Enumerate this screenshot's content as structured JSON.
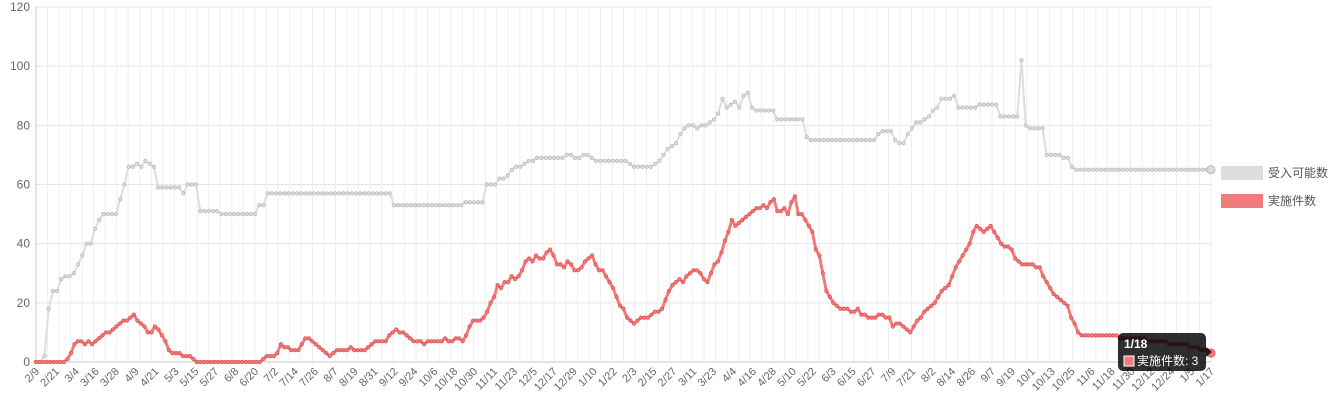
{
  "chart_data": {
    "type": "line",
    "ylim": [
      0,
      120
    ],
    "yticks": [
      0,
      20,
      40,
      60,
      80,
      100,
      120
    ],
    "grid": true,
    "legend_position": "right",
    "x_tick_labels": [
      "2/9",
      "2/21",
      "3/4",
      "3/16",
      "3/28",
      "4/9",
      "4/21",
      "5/3",
      "5/15",
      "5/27",
      "6/8",
      "6/20",
      "7/2",
      "7/14",
      "7/26",
      "8/7",
      "8/19",
      "8/31",
      "9/12",
      "9/24",
      "10/6",
      "10/18",
      "10/30",
      "11/11",
      "11/23",
      "12/5",
      "12/17",
      "12/29",
      "1/10",
      "1/22",
      "2/3",
      "2/15",
      "2/27",
      "3/11",
      "3/23",
      "4/4",
      "4/16",
      "4/28",
      "5/10",
      "5/22",
      "6/3",
      "6/15",
      "6/27",
      "7/9",
      "7/21",
      "8/2",
      "8/14",
      "8/26",
      "9/7",
      "9/19",
      "10/1",
      "10/13",
      "10/25",
      "11/6",
      "11/18",
      "11/30",
      "12/12",
      "12/24",
      "1/5",
      "1/17"
    ],
    "series": [
      {
        "name": "受入可能数",
        "color": "#dddddd",
        "point_color": "#bbbbbb",
        "values": [
          0,
          0,
          2,
          18,
          24,
          24,
          28,
          29,
          29,
          30,
          33,
          36,
          40,
          40,
          45,
          48,
          50,
          50,
          50,
          50,
          55,
          60,
          66,
          66,
          67,
          66,
          68,
          67,
          66,
          59,
          59,
          59,
          59,
          59,
          59,
          57,
          60,
          60,
          60,
          51,
          51,
          51,
          51,
          51,
          50,
          50,
          50,
          50,
          50,
          50,
          50,
          50,
          50,
          53,
          53,
          57,
          57,
          57,
          57,
          57,
          57,
          57,
          57,
          57,
          57,
          57,
          57,
          57,
          57,
          57,
          57,
          57,
          57,
          57,
          57,
          57,
          57,
          57,
          57,
          57,
          57,
          57,
          57,
          57,
          57,
          53,
          53,
          53,
          53,
          53,
          53,
          53,
          53,
          53,
          53,
          53,
          53,
          53,
          53,
          53,
          53,
          53,
          54,
          54,
          54,
          54,
          54,
          60,
          60,
          60,
          62,
          62,
          63,
          65,
          66,
          66,
          67,
          68,
          68,
          69,
          69,
          69,
          69,
          69,
          69,
          69,
          70,
          70,
          69,
          69,
          70,
          70,
          69,
          68,
          68,
          68,
          68,
          68,
          68,
          68,
          68,
          67,
          66,
          66,
          66,
          66,
          66,
          67,
          68,
          70,
          72,
          73,
          74,
          77,
          79,
          80,
          80,
          79,
          80,
          80,
          81,
          82,
          84,
          89,
          86,
          87,
          88,
          86,
          90,
          91,
          86,
          85,
          85,
          85,
          85,
          85,
          82,
          82,
          82,
          82,
          82,
          82,
          82,
          76,
          75,
          75,
          75,
          75,
          75,
          75,
          75,
          75,
          75,
          75,
          75,
          75,
          75,
          75,
          75,
          75,
          77,
          78,
          78,
          78,
          75,
          74,
          74,
          77,
          79,
          81,
          81,
          82,
          83,
          85,
          86,
          89,
          89,
          89,
          90,
          86,
          86,
          86,
          86,
          86,
          87,
          87,
          87,
          87,
          87,
          83,
          83,
          83,
          83,
          83,
          102,
          80,
          79,
          79,
          79,
          79,
          70,
          70,
          70,
          70,
          69,
          69,
          66,
          65,
          65,
          65,
          65,
          65,
          65,
          65,
          65,
          65,
          65,
          65,
          65,
          65,
          65,
          65,
          65,
          65,
          65,
          65,
          65,
          65,
          65,
          65,
          65,
          65,
          65,
          65,
          65,
          65,
          65,
          65,
          65,
          65
        ]
      },
      {
        "name": "実施件数",
        "color": "#f27b7b",
        "point_color": "#e05555",
        "values": [
          0,
          0,
          0,
          0,
          0,
          0,
          0,
          0,
          0,
          1,
          3,
          6,
          7,
          7,
          6,
          7,
          6,
          7,
          8,
          9,
          10,
          10,
          11,
          12,
          13,
          14,
          14,
          15,
          16,
          14,
          13,
          12,
          10,
          10,
          12,
          11,
          9,
          7,
          4,
          3,
          3,
          3,
          2,
          2,
          2,
          1,
          0,
          0,
          0,
          0,
          0,
          0,
          0,
          0,
          0,
          0,
          0,
          0,
          0,
          0,
          0,
          0,
          0,
          0,
          0,
          1,
          2,
          2,
          2,
          3,
          6,
          5,
          5,
          4,
          4,
          4,
          6,
          8,
          8,
          7,
          6,
          5,
          4,
          3,
          2,
          3,
          4,
          4,
          4,
          4,
          5,
          4,
          4,
          4,
          4,
          5,
          6,
          7,
          7,
          7,
          7,
          9,
          10,
          11,
          10,
          10,
          9,
          8,
          7,
          7,
          7,
          6,
          7,
          7,
          7,
          7,
          7,
          8,
          7,
          7,
          8,
          8,
          7,
          9,
          12,
          14,
          14,
          14,
          15,
          17,
          20,
          22,
          26,
          25,
          27,
          27,
          29,
          28,
          29,
          31,
          34,
          35,
          34,
          36,
          35,
          35,
          37,
          38,
          36,
          33,
          33,
          32,
          34,
          33,
          31,
          31,
          32,
          34,
          35,
          36,
          33,
          31,
          31,
          29,
          27,
          25,
          22,
          19,
          18,
          15,
          14,
          13,
          14,
          15,
          15,
          15,
          16,
          17,
          17,
          18,
          21,
          24,
          26,
          27,
          28,
          27,
          29,
          30,
          31,
          31,
          30,
          28,
          27,
          30,
          33,
          34,
          37,
          41,
          44,
          48,
          46,
          47,
          48,
          49,
          50,
          51,
          52,
          52,
          53,
          52,
          54,
          55,
          51,
          51,
          52,
          50,
          54,
          56,
          50,
          50,
          48,
          46,
          44,
          38,
          36,
          30,
          24,
          22,
          20,
          19,
          18,
          18,
          18,
          17,
          17,
          18,
          16,
          16,
          15,
          15,
          15,
          16,
          16,
          15,
          15,
          12,
          13,
          13,
          12,
          11,
          10,
          12,
          14,
          15,
          17,
          18,
          19,
          20,
          22,
          24,
          25,
          26,
          29,
          32,
          34,
          36,
          38,
          40,
          44,
          46,
          45,
          44,
          45,
          46,
          44,
          42,
          40,
          39,
          39,
          38,
          35,
          34,
          33,
          33,
          33,
          33,
          32,
          32,
          29,
          27,
          25,
          23,
          22,
          21,
          20,
          19,
          15,
          13,
          10,
          9,
          9,
          9,
          9,
          9,
          9,
          9,
          9,
          9,
          9,
          9,
          8,
          8,
          8,
          8,
          8,
          8,
          8,
          8,
          7,
          7,
          7,
          7,
          7,
          7,
          6,
          6,
          6,
          6,
          6,
          6,
          5,
          5,
          5,
          4,
          4,
          4,
          3
        ]
      }
    ]
  },
  "tooltip": {
    "title": "1/18",
    "body": "実施件数: 3"
  }
}
